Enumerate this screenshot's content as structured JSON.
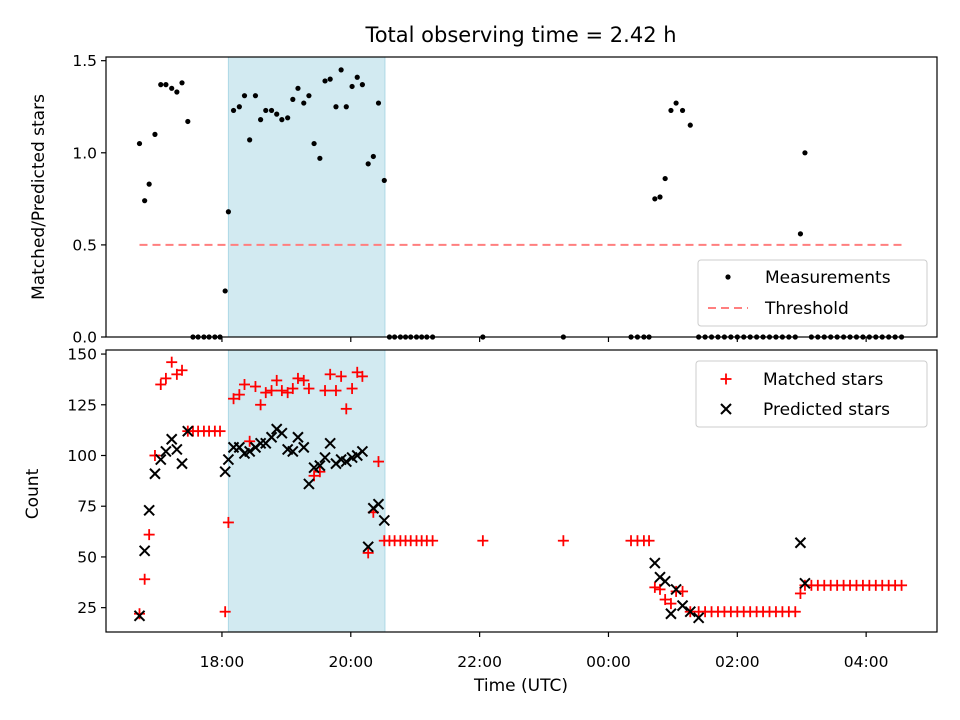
{
  "title": "Total observing time = 2.42 h",
  "colors": {
    "highlight": "#add8e6",
    "measurement": "#000000",
    "threshold": "#ff7f7f",
    "matched": "#ff0000",
    "predicted": "#000000"
  },
  "chart_data": [
    {
      "type": "scatter",
      "ylabel": "Matched/Predicted stars",
      "ylim": [
        0,
        1.52
      ],
      "yticks": [
        0.0,
        0.5,
        1.0,
        1.5
      ],
      "ytick_labels": [
        "0.0",
        "0.5",
        "1.0",
        "1.5"
      ],
      "x_unit": "hours since 00:00 UTC, day 1 (x > 24 = following day)",
      "xlim": [
        16.2,
        29.1
      ],
      "highlight": {
        "from": 18.1,
        "to": 20.53
      },
      "legend": {
        "position": "lower-right",
        "entries": [
          "Measurements",
          "Threshold"
        ]
      },
      "series": [
        {
          "name": "Measurements",
          "marker": "dot",
          "x": [
            16.72,
            16.8,
            16.87,
            16.96,
            17.05,
            17.13,
            17.22,
            17.3,
            17.38,
            17.47,
            17.55,
            17.63,
            17.72,
            17.8,
            17.89,
            17.97,
            18.05,
            18.1,
            18.18,
            18.27,
            18.35,
            18.43,
            18.52,
            18.6,
            18.68,
            18.77,
            18.85,
            18.93,
            19.02,
            19.1,
            19.18,
            19.27,
            19.35,
            19.43,
            19.52,
            19.6,
            19.68,
            19.77,
            19.85,
            19.93,
            20.02,
            20.1,
            20.18,
            20.27,
            20.35,
            20.43,
            20.52,
            20.6,
            20.68,
            20.77,
            20.85,
            20.93,
            21.02,
            21.1,
            21.18,
            21.27,
            22.05,
            23.3,
            24.35,
            24.45,
            24.55,
            24.63,
            24.72,
            24.8,
            24.88,
            24.97,
            25.05,
            25.15,
            25.27,
            25.4,
            25.5,
            25.6,
            25.7,
            25.8,
            25.9,
            26.0,
            26.1,
            26.2,
            26.3,
            26.4,
            26.5,
            26.6,
            26.7,
            26.8,
            26.9,
            26.98,
            27.05,
            27.15,
            27.25,
            27.35,
            27.45,
            27.55,
            27.65,
            27.75,
            27.85,
            27.95,
            28.05,
            28.15,
            28.25,
            28.35,
            28.45,
            28.55
          ],
          "y": [
            1.05,
            0.74,
            0.83,
            1.1,
            1.37,
            1.37,
            1.35,
            1.33,
            1.38,
            1.17,
            0.0,
            0.0,
            0.0,
            0.0,
            0.0,
            0.0,
            0.25,
            0.68,
            1.23,
            1.25,
            1.31,
            1.07,
            1.31,
            1.18,
            1.23,
            1.23,
            1.21,
            1.18,
            1.19,
            1.29,
            1.35,
            1.27,
            1.31,
            1.05,
            0.97,
            1.39,
            1.4,
            1.25,
            1.45,
            1.25,
            1.36,
            1.41,
            1.37,
            0.94,
            0.98,
            1.27,
            0.85,
            0.0,
            0.0,
            0.0,
            0.0,
            0.0,
            0.0,
            0.0,
            0.0,
            0.0,
            0.0,
            0.0,
            0.0,
            0.0,
            0.0,
            0.0,
            0.75,
            0.76,
            0.86,
            1.23,
            1.27,
            1.23,
            1.15,
            0.0,
            0.0,
            0.0,
            0.0,
            0.0,
            0.0,
            0.0,
            0.0,
            0.0,
            0.0,
            0.0,
            0.0,
            0.0,
            0.0,
            0.0,
            0.0,
            0.56,
            1.0,
            0.0,
            0.0,
            0.0,
            0.0,
            0.0,
            0.0,
            0.0,
            0.0,
            0.0,
            0.0,
            0.0,
            0.0,
            0.0,
            0.0,
            0.0
          ]
        },
        {
          "name": "Threshold",
          "style": "dashed",
          "x": [
            16.72,
            28.55
          ],
          "y": [
            0.5,
            0.5
          ]
        }
      ]
    },
    {
      "type": "scatter",
      "xlabel": "Time (UTC)",
      "ylabel": "Count",
      "ylim": [
        13,
        152
      ],
      "yticks": [
        25,
        50,
        75,
        100,
        125,
        150
      ],
      "ytick_labels": [
        "25",
        "50",
        "75",
        "100",
        "125",
        "150"
      ],
      "x_unit": "hours since 00:00 UTC, day 1 (x > 24 = following day)",
      "xlim": [
        16.2,
        29.1
      ],
      "xticks": [
        18,
        20,
        22,
        24,
        26,
        28
      ],
      "xtick_labels": [
        "18:00",
        "20:00",
        "22:00",
        "00:00",
        "02:00",
        "04:00"
      ],
      "highlight": {
        "from": 18.1,
        "to": 20.53
      },
      "legend": {
        "position": "top-right",
        "entries": [
          "Matched stars",
          "Predicted stars"
        ]
      },
      "series": [
        {
          "name": "Matched stars",
          "marker": "plus",
          "x": [
            16.72,
            16.8,
            16.87,
            16.96,
            17.05,
            17.13,
            17.22,
            17.3,
            17.38,
            17.47,
            17.55,
            17.63,
            17.72,
            17.8,
            17.89,
            17.97,
            18.05,
            18.1,
            18.18,
            18.27,
            18.35,
            18.43,
            18.52,
            18.6,
            18.68,
            18.77,
            18.85,
            18.93,
            19.02,
            19.1,
            19.18,
            19.27,
            19.35,
            19.43,
            19.52,
            19.6,
            19.68,
            19.77,
            19.85,
            19.93,
            20.02,
            20.1,
            20.18,
            20.27,
            20.35,
            20.43,
            20.52,
            20.6,
            20.68,
            20.77,
            20.85,
            20.93,
            21.02,
            21.1,
            21.18,
            21.27,
            22.05,
            23.3,
            24.35,
            24.45,
            24.55,
            24.63,
            24.72,
            24.8,
            24.88,
            24.97,
            25.05,
            25.15,
            25.27,
            25.4,
            25.5,
            25.6,
            25.7,
            25.8,
            25.9,
            26.0,
            26.1,
            26.2,
            26.3,
            26.4,
            26.5,
            26.6,
            26.7,
            26.8,
            26.9,
            26.98,
            27.05,
            27.15,
            27.25,
            27.35,
            27.45,
            27.55,
            27.65,
            27.75,
            27.85,
            27.95,
            28.05,
            28.15,
            28.25,
            28.35,
            28.45,
            28.55
          ],
          "y": [
            22,
            39,
            61,
            100,
            135,
            138,
            146,
            140,
            142,
            112,
            112,
            112,
            112,
            112,
            112,
            112,
            23,
            67,
            128,
            130,
            135,
            107,
            134,
            125,
            131,
            132,
            137,
            132,
            131,
            133,
            138,
            137,
            133,
            90,
            92,
            132,
            140,
            132,
            139,
            123,
            133,
            141,
            139,
            52,
            72,
            97,
            58,
            58,
            58,
            58,
            58,
            58,
            58,
            58,
            58,
            58,
            58,
            58,
            58,
            58,
            58,
            58,
            35,
            34,
            29,
            27,
            33,
            33,
            23,
            23,
            23,
            23,
            23,
            23,
            23,
            23,
            23,
            23,
            23,
            23,
            23,
            23,
            23,
            23,
            23,
            32,
            36,
            36,
            36,
            36,
            36,
            36,
            36,
            36,
            36,
            36,
            36,
            36,
            36,
            36,
            36,
            36
          ]
        },
        {
          "name": "Predicted stars",
          "marker": "x",
          "x": [
            16.72,
            16.8,
            16.87,
            16.96,
            17.05,
            17.13,
            17.22,
            17.3,
            17.38,
            17.47,
            18.05,
            18.1,
            18.18,
            18.27,
            18.35,
            18.43,
            18.52,
            18.6,
            18.68,
            18.77,
            18.85,
            18.93,
            19.02,
            19.1,
            19.18,
            19.27,
            19.35,
            19.43,
            19.52,
            19.6,
            19.68,
            19.77,
            19.85,
            19.93,
            20.02,
            20.1,
            20.18,
            20.27,
            20.35,
            20.43,
            20.52,
            24.72,
            24.8,
            24.88,
            24.97,
            25.05,
            25.15,
            25.27,
            25.4,
            26.98,
            27.05
          ],
          "y": [
            21,
            53,
            73,
            91,
            98,
            102,
            108,
            103,
            96,
            112,
            92,
            98,
            104,
            104,
            101,
            102,
            104,
            106,
            106,
            109,
            113,
            111,
            103,
            102,
            109,
            104,
            86,
            94,
            95,
            99,
            106,
            96,
            98,
            97,
            99,
            100,
            102,
            55,
            74,
            76,
            68,
            47,
            40,
            38,
            22,
            34,
            26,
            23,
            20,
            57,
            37
          ]
        }
      ]
    }
  ]
}
